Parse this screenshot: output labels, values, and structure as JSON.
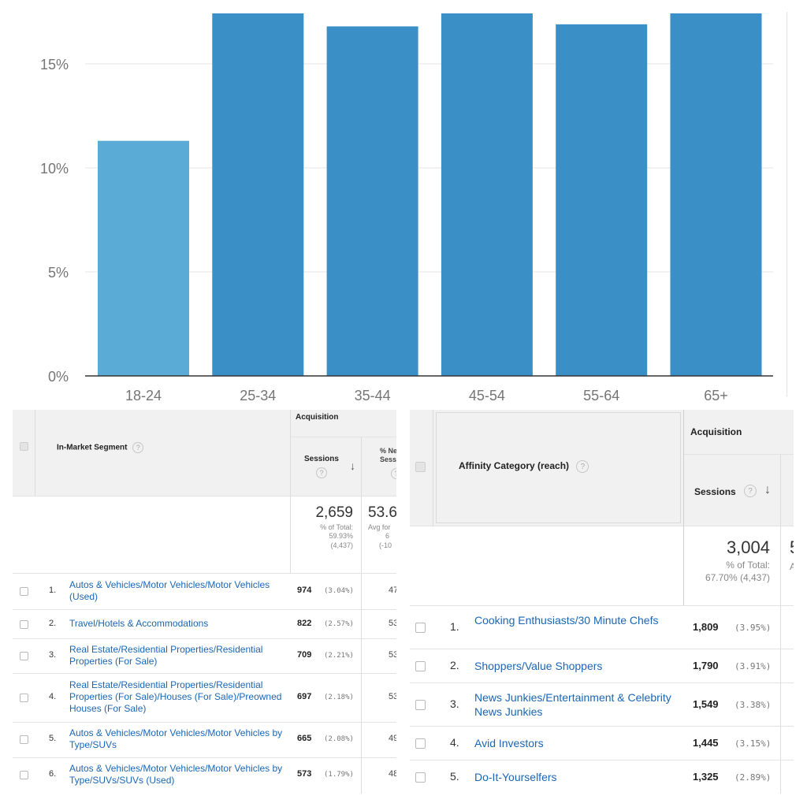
{
  "chart_data": {
    "type": "bar",
    "categories": [
      "18-24",
      "25-34",
      "35-44",
      "45-54",
      "55-64",
      "65+"
    ],
    "values": [
      11.3,
      17.7,
      16.8,
      17.7,
      16.9,
      17.7
    ],
    "ylim": [
      0,
      17.5
    ],
    "yticks": [
      0,
      5,
      10,
      15
    ],
    "ytick_labels": [
      "0%",
      "5%",
      "10%",
      "15%"
    ],
    "colors": [
      "#5aacd6",
      "#3a8fc7",
      "#3a8fc7",
      "#3a8fc7",
      "#3a8fc7",
      "#3a8fc7"
    ],
    "grid": true,
    "title": "",
    "xlabel": "",
    "ylabel": ""
  },
  "in_market": {
    "group_header": "Acquisition",
    "dimension_header": "In-Market Segment",
    "sessions_header": "Sessions",
    "new_sessions_header_lines": [
      "% Ne",
      "Sessi"
    ],
    "totals": {
      "sessions": "2,659",
      "sessions_sub": [
        "% of Total:",
        "59.93%",
        "(4,437)"
      ],
      "new_sessions": "53.6",
      "new_sessions_sub": [
        "Avg for",
        "6",
        "(-10"
      ]
    },
    "rows": [
      {
        "index": "1.",
        "name": "Autos & Vehicles/Motor Vehicles/Motor Vehicles (Used)",
        "sessions": "974",
        "pct": "(3.04%)",
        "next": "47"
      },
      {
        "index": "2.",
        "name": "Travel/Hotels & Accommodations",
        "sessions": "822",
        "pct": "(2.57%)",
        "next": "53"
      },
      {
        "index": "3.",
        "name": "Real Estate/Residential Properties/Residential Properties (For Sale)",
        "sessions": "709",
        "pct": "(2.21%)",
        "next": "53"
      },
      {
        "index": "4.",
        "name": "Real Estate/Residential Properties/Residential Properties (For Sale)/Houses (For Sale)/Preowned Houses (For Sale)",
        "sessions": "697",
        "pct": "(2.18%)",
        "next": "53"
      },
      {
        "index": "5.",
        "name": "Autos & Vehicles/Motor Vehicles/Motor Vehicles by Type/SUVs",
        "sessions": "665",
        "pct": "(2.08%)",
        "next": "49"
      },
      {
        "index": "6.",
        "name": "Autos & Vehicles/Motor Vehicles/Motor Vehicles by Type/SUVs/SUVs (Used)",
        "sessions": "573",
        "pct": "(1.79%)",
        "next": "48"
      }
    ]
  },
  "affinity": {
    "group_header": "Acquisition",
    "dimension_header": "Affinity Category (reach)",
    "sessions_header": "Sessions",
    "totals": {
      "sessions": "3,004",
      "sessions_sub": [
        "% of Total:",
        "67.70% (4,437)"
      ],
      "next_big": "5",
      "next_sub": "A"
    },
    "rows": [
      {
        "index": "1.",
        "name": "Cooking Enthusiasts/30 Minute Chefs",
        "sessions": "1,809",
        "pct": "(3.95%)"
      },
      {
        "index": "2.",
        "name": "Shoppers/Value Shoppers",
        "sessions": "1,790",
        "pct": "(3.91%)"
      },
      {
        "index": "3.",
        "name": "News Junkies/Entertainment & Celebrity News Junkies",
        "sessions": "1,549",
        "pct": "(3.38%)"
      },
      {
        "index": "4.",
        "name": "Avid Investors",
        "sessions": "1,445",
        "pct": "(3.15%)"
      },
      {
        "index": "5.",
        "name": "Do-It-Yourselfers",
        "sessions": "1,325",
        "pct": "(2.89%)"
      }
    ]
  },
  "help_glyph": "?",
  "sort_arrow_glyph": "↓"
}
